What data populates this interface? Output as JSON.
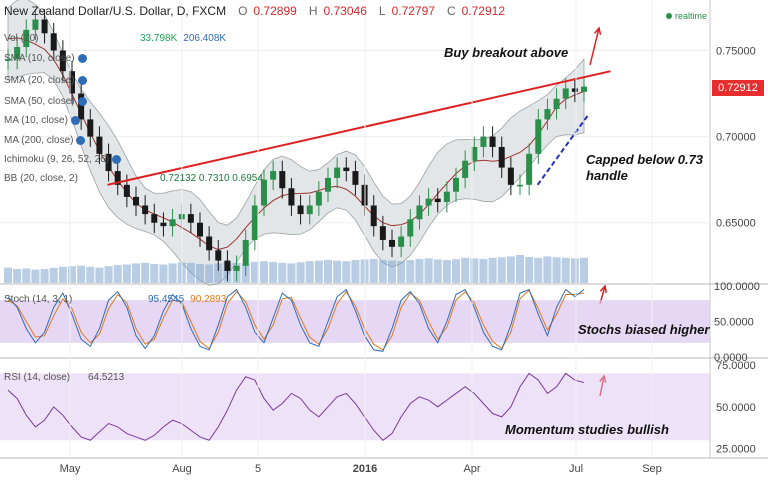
{
  "header": {
    "symbol": "New Zealand Dollar/U.S. Dollar, D, FXCM",
    "open_label": "O",
    "open": "0.72899",
    "high_label": "H",
    "high": "0.73046",
    "low_label": "L",
    "low": "0.72797",
    "close_label": "C",
    "close": "0.72912",
    "realtime": "realtime"
  },
  "legend": {
    "vol": "Vol (20)",
    "vol_value1": "33.798K",
    "vol_value2": "206.408K",
    "sma1": "SMA (10, close)",
    "sma2": "SMA (20, close)",
    "sma3": "SMA (50, close)",
    "ma10": "MA (10, close)",
    "ma200": "MA (200, close)",
    "ichimoku": "Ichimoku (9, 26, 52, 26)",
    "bb": "BB (20, close, 2)",
    "bb_values": "0.72132  0.7310  0.6954",
    "stoch": "Stoch (14, 3, 1)",
    "stoch_k": "95.4545",
    "stoch_d": "90.2893",
    "rsi": "RSI (14, close)",
    "rsi_value": "64.5213"
  },
  "last_price": "0.72912",
  "annotations": {
    "breakout": "Buy breakout above",
    "capped_line1": "Capped below 0.73",
    "capped_line2": "handle",
    "stochs": "Stochs biased higher",
    "momentum": "Momentum studies bullish"
  },
  "colors": {
    "bull_candle": "#2a8f4a",
    "bear_candle": "#1a1a1a",
    "bb_band": "#c8d0d4",
    "trendline": "#e02020",
    "support_line": "#2030c0",
    "stoch_k": "#2f6db5",
    "stoch_d": "#e07a1f",
    "rsi": "#7a3a9a",
    "osc_fill": "#dcc6ef"
  },
  "chart_data": {
    "type": "line",
    "x_tick_labels": [
      "May",
      "Aug",
      "5",
      "2016",
      "Apr",
      "Jul",
      "Sep"
    ],
    "price_axis": {
      "ticks": [
        "0.75000",
        "0.70000",
        "0.65000"
      ],
      "ylim": [
        0.615,
        0.777
      ]
    },
    "stoch_axis": {
      "ticks": [
        "100.0000",
        "50.0000",
        "0.0000"
      ],
      "ylim": [
        0,
        100
      ]
    },
    "rsi_axis": {
      "ticks": [
        "75.0000",
        "50.0000",
        "25.0000"
      ],
      "ylim": [
        20,
        78
      ]
    },
    "price_series": [
      0.745,
      0.752,
      0.762,
      0.768,
      0.76,
      0.75,
      0.738,
      0.725,
      0.71,
      0.7,
      0.69,
      0.68,
      0.672,
      0.665,
      0.66,
      0.655,
      0.65,
      0.648,
      0.652,
      0.655,
      0.65,
      0.642,
      0.634,
      0.628,
      0.622,
      0.625,
      0.64,
      0.66,
      0.675,
      0.68,
      0.67,
      0.66,
      0.655,
      0.66,
      0.668,
      0.676,
      0.682,
      0.68,
      0.672,
      0.66,
      0.648,
      0.64,
      0.636,
      0.642,
      0.652,
      0.66,
      0.664,
      0.662,
      0.668,
      0.676,
      0.686,
      0.694,
      0.7,
      0.694,
      0.682,
      0.672,
      0.672,
      0.69,
      0.71,
      0.716,
      0.722,
      0.728,
      0.726,
      0.729
    ],
    "trendline": [
      [
        0.14,
        0.672
      ],
      [
        0.795,
        0.738
      ]
    ],
    "support_line": [
      [
        0.7,
        0.672
      ],
      [
        0.765,
        0.712
      ]
    ],
    "volume": [
      0.55,
      0.5,
      0.52,
      0.48,
      0.5,
      0.54,
      0.58,
      0.6,
      0.62,
      0.58,
      0.55,
      0.6,
      0.64,
      0.66,
      0.7,
      0.72,
      0.68,
      0.66,
      0.7,
      0.74,
      0.72,
      0.68,
      0.66,
      0.7,
      0.74,
      0.72,
      0.7,
      0.76,
      0.78,
      0.75,
      0.72,
      0.7,
      0.74,
      0.78,
      0.8,
      0.82,
      0.8,
      0.78,
      0.82,
      0.84,
      0.86,
      0.82,
      0.8,
      0.78,
      0.82,
      0.86,
      0.88,
      0.84,
      0.82,
      0.85,
      0.9,
      0.88,
      0.86,
      0.9,
      0.92,
      0.95,
      1.0,
      0.93,
      0.9,
      0.95,
      0.92,
      0.9,
      0.88,
      0.9
    ],
    "stoch_k": [
      85,
      70,
      40,
      20,
      35,
      70,
      90,
      60,
      25,
      15,
      40,
      80,
      92,
      70,
      30,
      12,
      30,
      65,
      88,
      75,
      40,
      15,
      10,
      45,
      85,
      95,
      70,
      35,
      20,
      55,
      90,
      80,
      45,
      20,
      15,
      50,
      85,
      95,
      65,
      30,
      10,
      8,
      40,
      80,
      92,
      75,
      40,
      20,
      50,
      88,
      95,
      70,
      35,
      15,
      10,
      45,
      90,
      95,
      60,
      30,
      70,
      95,
      85,
      95
    ],
    "stoch_d": [
      80,
      72,
      50,
      28,
      30,
      58,
      82,
      68,
      35,
      20,
      32,
      68,
      88,
      76,
      40,
      18,
      25,
      55,
      80,
      78,
      50,
      22,
      12,
      35,
      75,
      92,
      78,
      45,
      25,
      45,
      82,
      84,
      55,
      28,
      18,
      40,
      75,
      92,
      72,
      40,
      18,
      10,
      30,
      70,
      90,
      80,
      50,
      25,
      42,
      80,
      92,
      76,
      45,
      22,
      12,
      35,
      82,
      94,
      68,
      38,
      60,
      88,
      88,
      90
    ],
    "rsi": [
      60,
      55,
      45,
      38,
      42,
      50,
      45,
      38,
      32,
      30,
      35,
      40,
      38,
      34,
      32,
      30,
      33,
      38,
      42,
      40,
      36,
      32,
      30,
      38,
      48,
      60,
      68,
      66,
      55,
      48,
      52,
      58,
      55,
      48,
      44,
      50,
      56,
      58,
      52,
      44,
      36,
      30,
      34,
      44,
      52,
      56,
      54,
      50,
      54,
      58,
      62,
      58,
      52,
      46,
      44,
      50,
      62,
      70,
      66,
      58,
      62,
      70,
      66,
      64.5
    ]
  }
}
